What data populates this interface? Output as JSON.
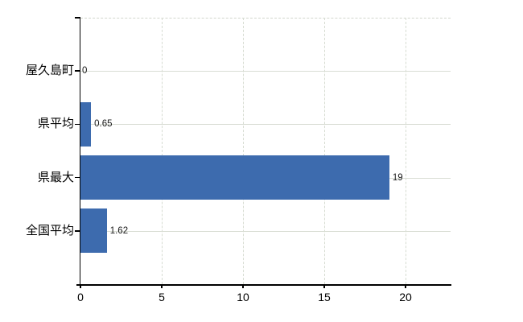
{
  "chart_data": {
    "type": "bar",
    "orientation": "horizontal",
    "title": "",
    "xlabel": "",
    "ylabel": "",
    "categories": [
      "屋久島町",
      "県平均",
      "県最大",
      "全国平均"
    ],
    "values": [
      0,
      0.65,
      19,
      1.62
    ],
    "value_labels": [
      "0",
      "0.65",
      "19",
      "1.62"
    ],
    "x_ticks": [
      0,
      5,
      10,
      15,
      20
    ],
    "x_tick_labels": [
      "0",
      "5",
      "10",
      "15",
      "20"
    ],
    "xlim": [
      0,
      22.77
    ],
    "grid": true,
    "legend": false,
    "colors": {
      "bar": "#3d6bae",
      "grid": "#d7dcd2",
      "axis": "#000000",
      "text": "#000000",
      "background": "#ffffff"
    }
  }
}
